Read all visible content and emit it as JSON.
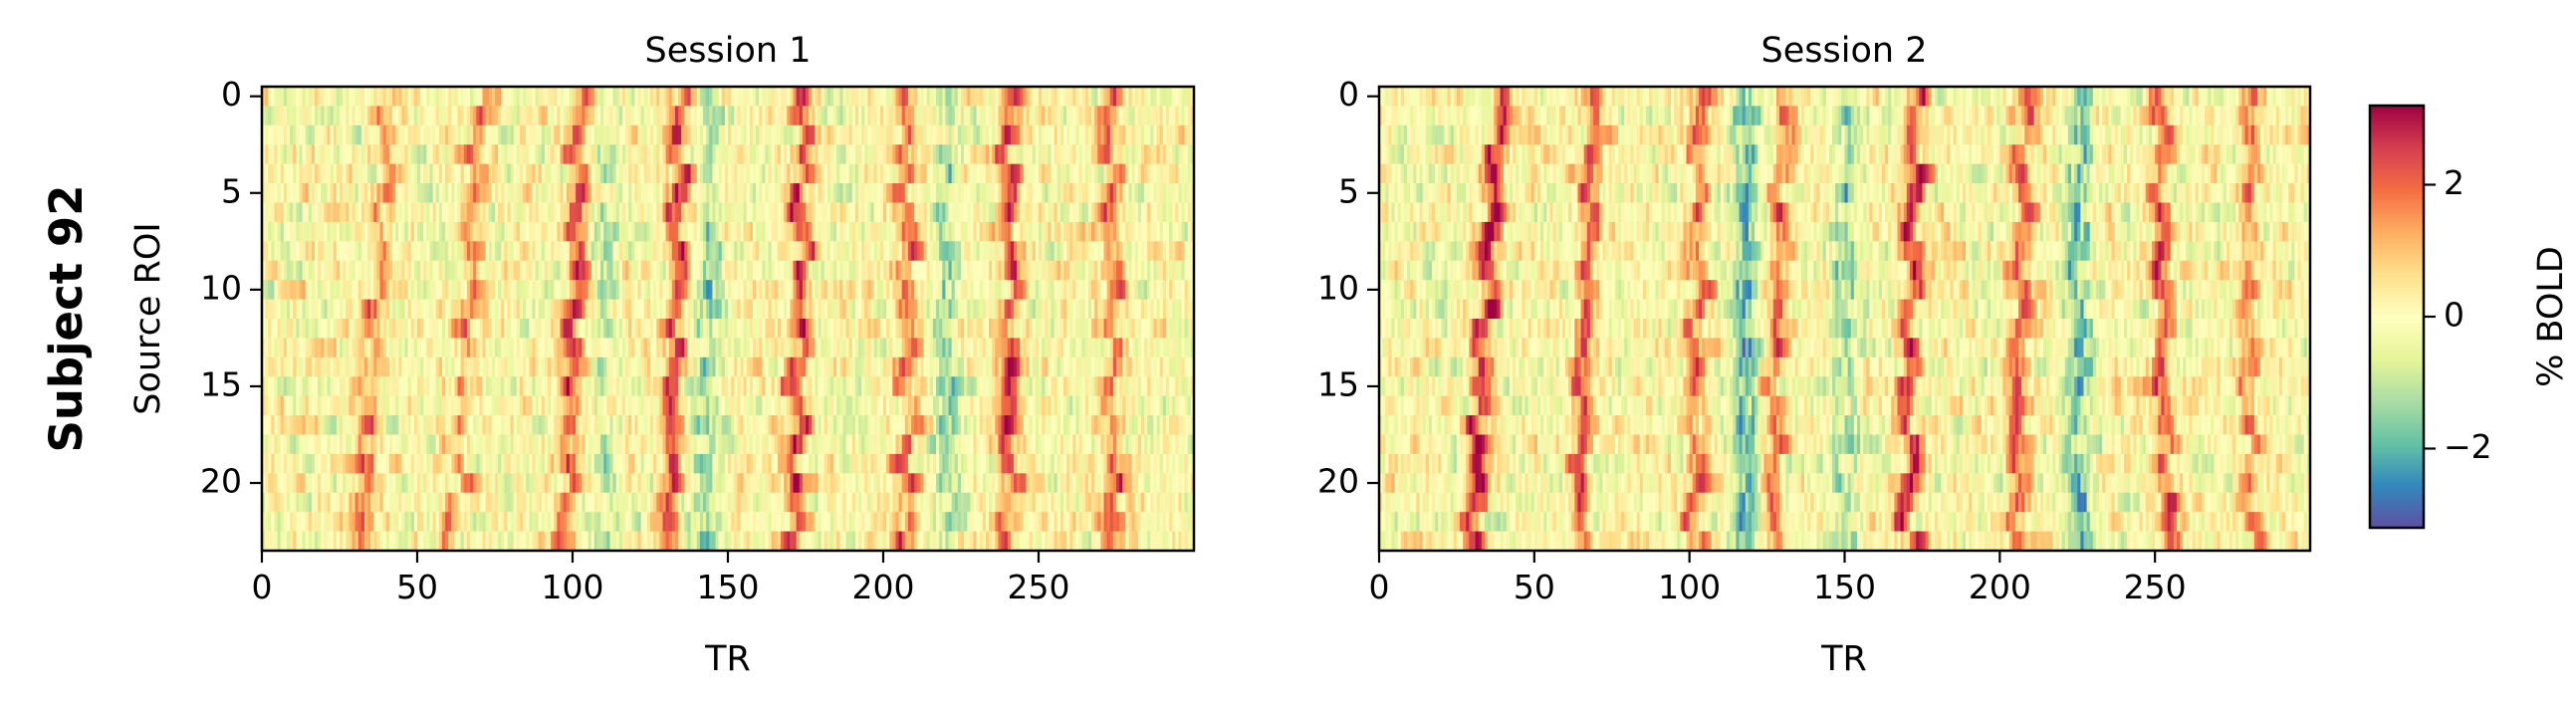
{
  "row_title": "Subject 92",
  "colormap": {
    "name": "Spectral_r",
    "stops": [
      "#5e4fa2",
      "#3288bd",
      "#66c2a5",
      "#abdda4",
      "#e6f598",
      "#ffffbf",
      "#fee08b",
      "#fdae61",
      "#f46d43",
      "#d53e4f",
      "#9e0142"
    ]
  },
  "chart_data": [
    {
      "type": "heatmap",
      "title": "Session 1",
      "xlabel": "TR",
      "ylabel": "Source ROI",
      "x_ticks": [
        "0",
        "50",
        "100",
        "150",
        "200",
        "250"
      ],
      "y_ticks": [
        "0",
        "5",
        "10",
        "15",
        "20"
      ],
      "n_rois": 24,
      "n_trs": 300,
      "xlim": [
        0,
        299
      ],
      "ylim": [
        0,
        23
      ],
      "grid": false,
      "peak_events": [
        {
          "tr": 40,
          "drift": -8,
          "amplitude": 1.6
        },
        {
          "tr": 70,
          "drift": -8,
          "amplitude": 1.5
        },
        {
          "tr": 102,
          "drift": -4,
          "amplitude": 2.4
        },
        {
          "tr": 134,
          "drift": -3,
          "amplitude": 2.4
        },
        {
          "tr": 174,
          "drift": -3,
          "amplitude": 2.4
        },
        {
          "tr": 206,
          "drift": 2,
          "amplitude": 1.8
        },
        {
          "tr": 240,
          "drift": 0,
          "amplitude": 2.2
        },
        {
          "tr": 272,
          "drift": 2,
          "amplitude": 1.8
        }
      ],
      "trough_events": [
        {
          "tr": 143,
          "amplitude": -1.3
        },
        {
          "tr": 110,
          "amplitude": -0.8
        },
        {
          "tr": 220,
          "amplitude": -1.2
        }
      ]
    },
    {
      "type": "heatmap",
      "title": "Session 2",
      "xlabel": "TR",
      "ylabel": "",
      "x_ticks": [
        "0",
        "50",
        "100",
        "150",
        "200",
        "250"
      ],
      "y_ticks": [
        "0",
        "5",
        "10",
        "15",
        "20"
      ],
      "n_rois": 24,
      "n_trs": 300,
      "xlim": [
        0,
        299
      ],
      "ylim": [
        0,
        23
      ],
      "grid": false,
      "peak_events": [
        {
          "tr": 38,
          "drift": -8,
          "amplitude": 2.8
        },
        {
          "tr": 68,
          "drift": -4,
          "amplitude": 2.2
        },
        {
          "tr": 102,
          "drift": 0,
          "amplitude": 1.8
        },
        {
          "tr": 130,
          "drift": -4,
          "amplitude": 1.8
        },
        {
          "tr": 172,
          "drift": -2,
          "amplitude": 2.6
        },
        {
          "tr": 207,
          "drift": -2,
          "amplitude": 2.0
        },
        {
          "tr": 250,
          "drift": 4,
          "amplitude": 2.0
        },
        {
          "tr": 280,
          "drift": 0,
          "amplitude": 1.6
        }
      ],
      "trough_events": [
        {
          "tr": 118,
          "amplitude": -1.8
        },
        {
          "tr": 150,
          "amplitude": -1.2
        },
        {
          "tr": 225,
          "amplitude": -1.6
        }
      ]
    }
  ],
  "colorbar": {
    "label": "% BOLD",
    "vmin": -3.2,
    "vmax": 3.2,
    "ticks": [
      {
        "value": 2,
        "label": "2"
      },
      {
        "value": 0,
        "label": "0"
      },
      {
        "value": -2,
        "label": "−2"
      }
    ]
  }
}
